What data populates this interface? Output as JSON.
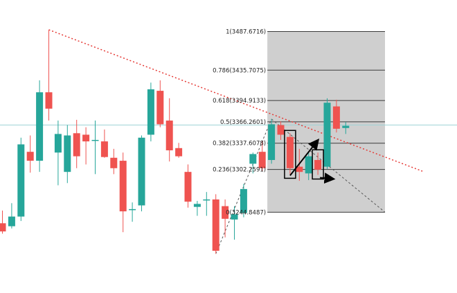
{
  "colors": {
    "up": "#26a69a",
    "down": "#ef5350",
    "trendline": "#e53935",
    "fib_fill": "#cfcfcf",
    "fib_line": "#3a3a3a",
    "dash": "#555555",
    "crosshair": "#9fd3d6",
    "annotation": "#000000"
  },
  "chart_data": {
    "type": "candlestick",
    "title": "",
    "xlabel": "",
    "ylabel": "",
    "ylim": [
      3140,
      3530
    ],
    "grid": false,
    "candles": [
      {
        "o": 3230,
        "h": 3247,
        "l": 3216,
        "c": 3219
      },
      {
        "o": 3226,
        "h": 3257,
        "l": 3223,
        "c": 3239
      },
      {
        "o": 3239,
        "h": 3345,
        "l": 3233,
        "c": 3336
      },
      {
        "o": 3326,
        "h": 3348,
        "l": 3298,
        "c": 3314
      },
      {
        "o": 3314,
        "h": 3422,
        "l": 3299,
        "c": 3406
      },
      {
        "o": 3406,
        "h": 3490,
        "l": 3368,
        "c": 3384
      },
      {
        "o": 3325,
        "h": 3368,
        "l": 3281,
        "c": 3350
      },
      {
        "o": 3299,
        "h": 3362,
        "l": 3284,
        "c": 3348
      },
      {
        "o": 3351,
        "h": 3369,
        "l": 3304,
        "c": 3320
      },
      {
        "o": 3349,
        "h": 3359,
        "l": 3309,
        "c": 3340
      },
      {
        "o": 3342,
        "h": 3368,
        "l": 3296,
        "c": 3342
      },
      {
        "o": 3340,
        "h": 3356,
        "l": 3318,
        "c": 3319
      },
      {
        "o": 3318,
        "h": 3330,
        "l": 3296,
        "c": 3304
      },
      {
        "o": 3314,
        "h": 3325,
        "l": 3218,
        "c": 3246
      },
      {
        "o": 3249,
        "h": 3258,
        "l": 3232,
        "c": 3249
      },
      {
        "o": 3254,
        "h": 3348,
        "l": 3246,
        "c": 3345
      },
      {
        "o": 3349,
        "h": 3419,
        "l": 3340,
        "c": 3410
      },
      {
        "o": 3408,
        "h": 3422,
        "l": 3359,
        "c": 3363
      },
      {
        "o": 3368,
        "h": 3398,
        "l": 3313,
        "c": 3328
      },
      {
        "o": 3331,
        "h": 3338,
        "l": 3318,
        "c": 3320
      },
      {
        "o": 3299,
        "h": 3309,
        "l": 3251,
        "c": 3259
      },
      {
        "o": 3252,
        "h": 3260,
        "l": 3240,
        "c": 3256
      },
      {
        "o": 3262,
        "h": 3272,
        "l": 3240,
        "c": 3262
      },
      {
        "o": 3262,
        "h": 3269,
        "l": 3189,
        "c": 3193
      },
      {
        "o": 3253,
        "h": 3262,
        "l": 3211,
        "c": 3236
      },
      {
        "o": 3235,
        "h": 3253,
        "l": 3208,
        "c": 3242
      },
      {
        "o": 3244,
        "h": 3283,
        "l": 3238,
        "c": 3276
      },
      {
        "o": 3310,
        "h": 3325,
        "l": 3297,
        "c": 3323
      },
      {
        "o": 3326,
        "h": 3340,
        "l": 3300,
        "c": 3304
      },
      {
        "o": 3315,
        "h": 3370,
        "l": 3310,
        "c": 3363
      },
      {
        "o": 3362,
        "h": 3367,
        "l": 3342,
        "c": 3349
      },
      {
        "o": 3346,
        "h": 3351,
        "l": 3296,
        "c": 3304
      },
      {
        "o": 3306,
        "h": 3330,
        "l": 3287,
        "c": 3299
      },
      {
        "o": 3297,
        "h": 3325,
        "l": 3288,
        "c": 3320
      },
      {
        "o": 3315,
        "h": 3325,
        "l": 3295,
        "c": 3302
      },
      {
        "o": 3306,
        "h": 3398,
        "l": 3303,
        "c": 3392
      },
      {
        "o": 3387,
        "h": 3396,
        "l": 3352,
        "c": 3357
      },
      {
        "o": 3358,
        "h": 3366,
        "l": 3350,
        "c": 3361
      }
    ],
    "fibonacci": {
      "levels": [
        {
          "ratio": 1,
          "price": 3487.6716,
          "label": "1(3487.6716)"
        },
        {
          "ratio": 0.786,
          "price": 3435.7075,
          "label": "0.786(3435.7075)"
        },
        {
          "ratio": 0.618,
          "price": 3394.9133,
          "label": "0.618(3394.9133)"
        },
        {
          "ratio": 0.5,
          "price": 3366.2601,
          "label": "0.5(3366.2601)"
        },
        {
          "ratio": 0.382,
          "price": 3337.6078,
          "label": "0.382(3337.6078)"
        },
        {
          "ratio": 0.236,
          "price": 3302.2591,
          "label": "0.236(3302.2591)"
        },
        {
          "ratio": 0,
          "price": 3244.8487,
          "label": "0(3244.8487)"
        }
      ],
      "anchor_candles": [
        29,
        37
      ]
    },
    "annotations": {
      "trendline": "dotted descending resistance line",
      "crosshair_price": 3362,
      "highlight_boxes": [
        31,
        34
      ],
      "arrows": [
        "up",
        "down"
      ]
    }
  }
}
